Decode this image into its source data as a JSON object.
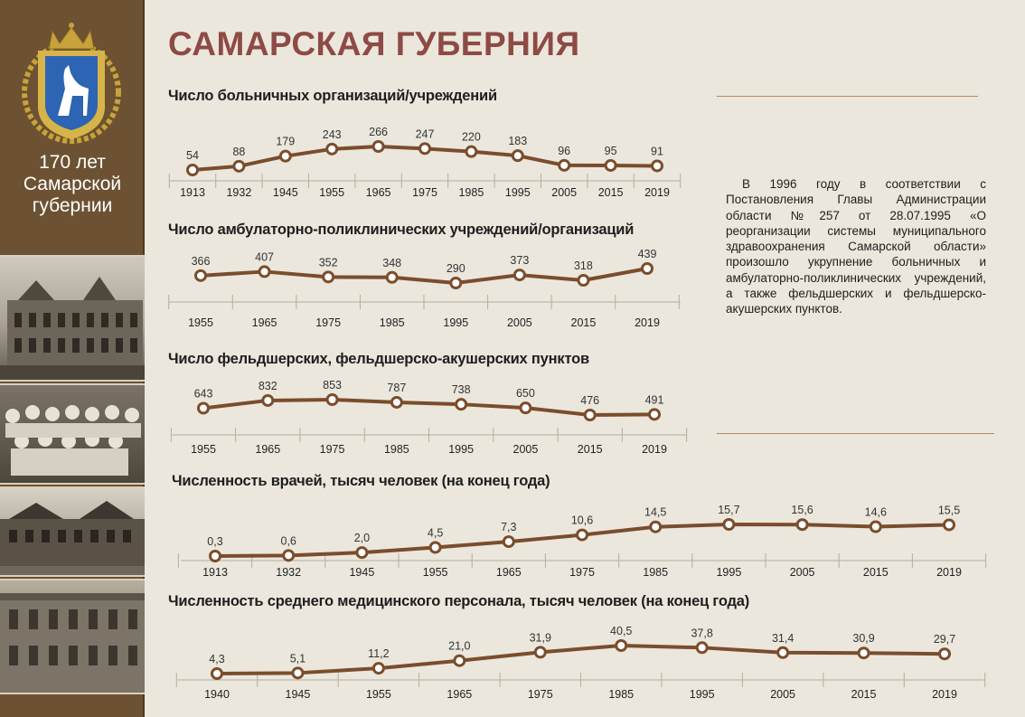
{
  "header": {
    "title": "САМАРСКАЯ ГУБЕРНИЯ"
  },
  "sidebar": {
    "caption_lines": [
      "170 лет",
      "Самарской",
      "губернии"
    ],
    "emblem_icon": "samara-coat-of-arms-icon"
  },
  "note": {
    "text": "В 1996 году в соответствии с Постановления Главы Администрации области №257 от 28.07.1995 «О реорганизации системы муниципального здравоохранения Самарской области» произошло укрупнение больничных и амбулаторно-поликлинических учреждений, а также фельдшерских и фельдшерско-акушерских пунктов."
  },
  "colors": {
    "line": "#7a4d2c",
    "marker_fill": "#ffffff",
    "title": "#8e4a45",
    "sidebar": "#6c5232"
  },
  "chart_data": [
    {
      "type": "line",
      "title": "Число больничных организаций/учреждений",
      "categories": [
        "1913",
        "1932",
        "1945",
        "1955",
        "1965",
        "1975",
        "1985",
        "1995",
        "2005",
        "2015",
        "2019"
      ],
      "values": [
        54,
        88,
        179,
        243,
        266,
        247,
        220,
        183,
        96,
        95,
        91
      ],
      "labels": [
        "54",
        "88",
        "179",
        "243",
        "266",
        "247",
        "220",
        "183",
        "96",
        "95",
        "91"
      ]
    },
    {
      "type": "line",
      "title": "Число амбулаторно-поликлинических учреждений/организаций",
      "categories": [
        "1955",
        "1965",
        "1975",
        "1985",
        "1995",
        "2005",
        "2015",
        "2019"
      ],
      "values": [
        366,
        407,
        352,
        348,
        290,
        373,
        318,
        439
      ],
      "labels": [
        "366",
        "407",
        "352",
        "348",
        "290",
        "373",
        "318",
        "439"
      ]
    },
    {
      "type": "line",
      "title": "Число фельдшерских, фельдшерско-акушерских пунктов",
      "categories": [
        "1955",
        "1965",
        "1975",
        "1985",
        "1995",
        "2005",
        "2015",
        "2019"
      ],
      "values": [
        643,
        832,
        853,
        787,
        738,
        650,
        476,
        491
      ],
      "labels": [
        "643",
        "832",
        "853",
        "787",
        "738",
        "650",
        "476",
        "491"
      ]
    },
    {
      "type": "line",
      "title": "Численность врачей, тысяч человек (на конец года)",
      "categories": [
        "1913",
        "1932",
        "1945",
        "1955",
        "1965",
        "1975",
        "1985",
        "1995",
        "2005",
        "2015",
        "2019"
      ],
      "values": [
        0.3,
        0.6,
        2.0,
        4.5,
        7.3,
        10.6,
        14.5,
        15.7,
        15.6,
        14.6,
        15.5
      ],
      "labels": [
        "0,3",
        "0,6",
        "2,0",
        "4,5",
        "7,3",
        "10,6",
        "14,5",
        "15,7",
        "15,6",
        "14,6",
        "15,5"
      ]
    },
    {
      "type": "line",
      "title": "Численность среднего медицинского персонала, тысяч человек (на конец года)",
      "categories": [
        "1940",
        "1945",
        "1955",
        "1965",
        "1975",
        "1985",
        "1995",
        "2005",
        "2015",
        "2019"
      ],
      "values": [
        4.3,
        5.1,
        11.2,
        21.0,
        31.9,
        40.5,
        37.8,
        31.4,
        30.9,
        29.7
      ],
      "labels": [
        "4,3",
        "5,1",
        "11,2",
        "21,0",
        "31,9",
        "40,5",
        "37,8",
        "31,4",
        "30,9",
        "29,7"
      ]
    }
  ]
}
